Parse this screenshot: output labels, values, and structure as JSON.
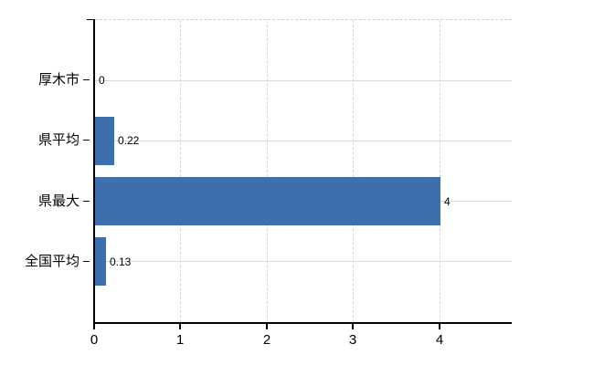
{
  "chart_data": {
    "type": "bar",
    "orientation": "horizontal",
    "title": "",
    "categories": [
      "厚木市",
      "県平均",
      "県最大",
      "全国平均"
    ],
    "values": [
      0,
      0.22,
      4,
      0.13
    ],
    "value_labels": [
      "0",
      "0.22",
      "4",
      "0.13"
    ],
    "x_ticks": [
      0,
      1,
      2,
      3,
      4
    ],
    "x_tick_labels": [
      "0",
      "1",
      "2",
      "3",
      "4"
    ],
    "xlim": [
      0,
      4.83
    ],
    "grid": true,
    "legend_visible": false,
    "colors": {
      "bar": "#3d6fae",
      "h_gridline": "#d5dcd5",
      "v_gridline": "#ddd3dd",
      "top_border": "#cfcfcf",
      "axis": "#000000",
      "text": "#000000",
      "background": "#ffffff"
    }
  }
}
